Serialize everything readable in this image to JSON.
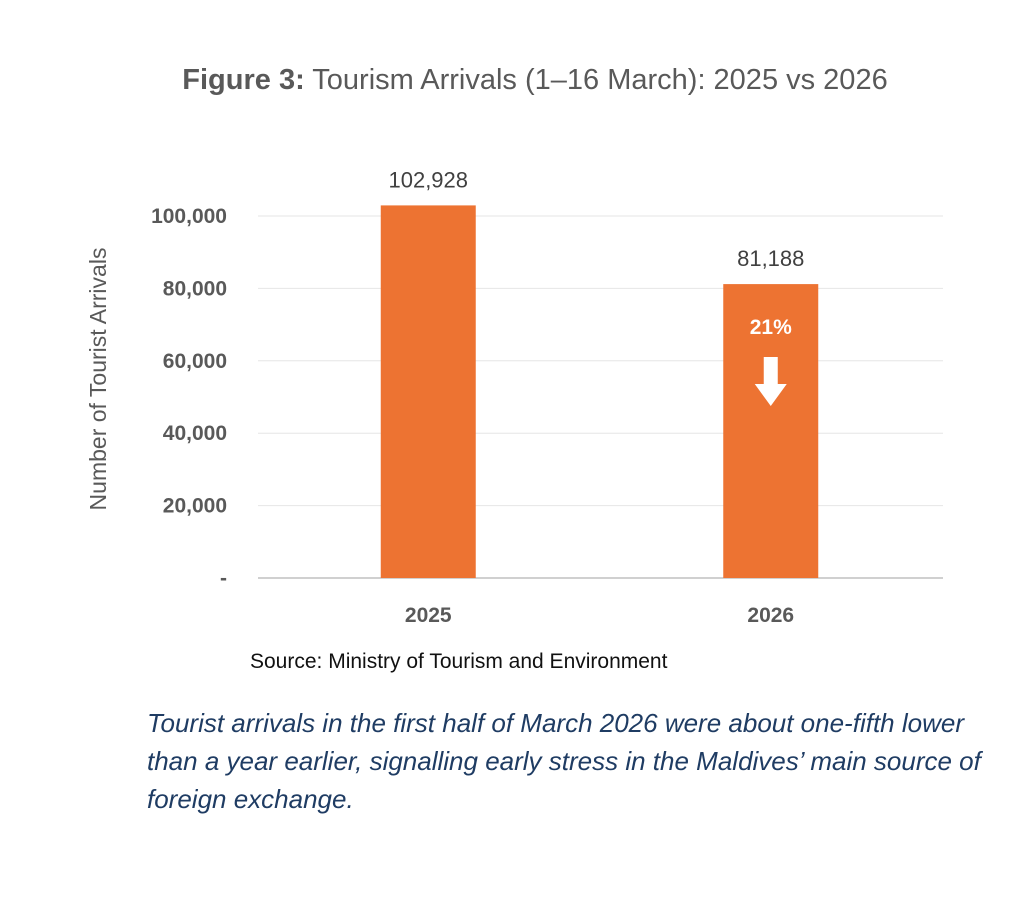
{
  "title_prefix": "Figure 3:",
  "title_text": " Tourism Arrivals (1–16 March): 2025 vs 2026",
  "chart_data": {
    "type": "bar",
    "title": "Figure 3: Tourism Arrivals (1–16 March): 2025 vs 2026",
    "categories": [
      "2025",
      "2026"
    ],
    "values": [
      102928,
      81188
    ],
    "data_labels": [
      "102,928",
      "81,188"
    ],
    "ylabel": "Number of Tourist Arrivals",
    "ylim": [
      0,
      100000
    ],
    "yticks": [
      0,
      20000,
      40000,
      60000,
      80000,
      100000
    ],
    "ytick_labels": [
      "-",
      "20,000",
      "40,000",
      "60,000",
      "80,000",
      "100,000"
    ],
    "grid": true,
    "bar_color": "#ed7332",
    "annotation": {
      "text": "21%",
      "category": "2026",
      "icon": "down-arrow-icon"
    }
  },
  "source": "Source: Ministry of Tourism and Environment",
  "caption": "Tourist arrivals in the first half of March 2026 were about one-fifth lower than a year earlier, signalling early stress in the Maldives’ main source of foreign exchange."
}
